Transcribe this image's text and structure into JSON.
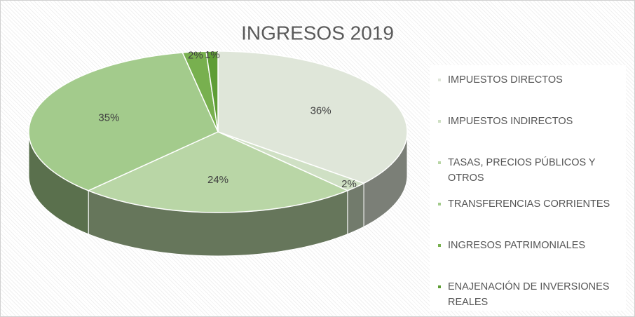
{
  "chart_data": {
    "type": "pie3d",
    "title": "INGRESOS 2019",
    "categories": [
      "IMPUESTOS DIRECTOS",
      "IMPUESTOS INDIRECTOS",
      "TASAS, PRECIOS PÚBLICOS Y OTROS",
      "TRANSFERENCIAS CORRIENTES",
      "INGRESOS PATRIMONIALES",
      "ENAJENACIÓN DE INVERSIONES REALES"
    ],
    "values": [
      36,
      2,
      24,
      35,
      2,
      1
    ],
    "value_labels": [
      "36%",
      "2%",
      "24%",
      "35%",
      "2%",
      "1%"
    ],
    "colors": [
      "#dfe6d9",
      "#cfe0c4",
      "#b9d6a6",
      "#a3cb8c",
      "#78b04f",
      "#5e9d35"
    ],
    "legend": "right"
  }
}
